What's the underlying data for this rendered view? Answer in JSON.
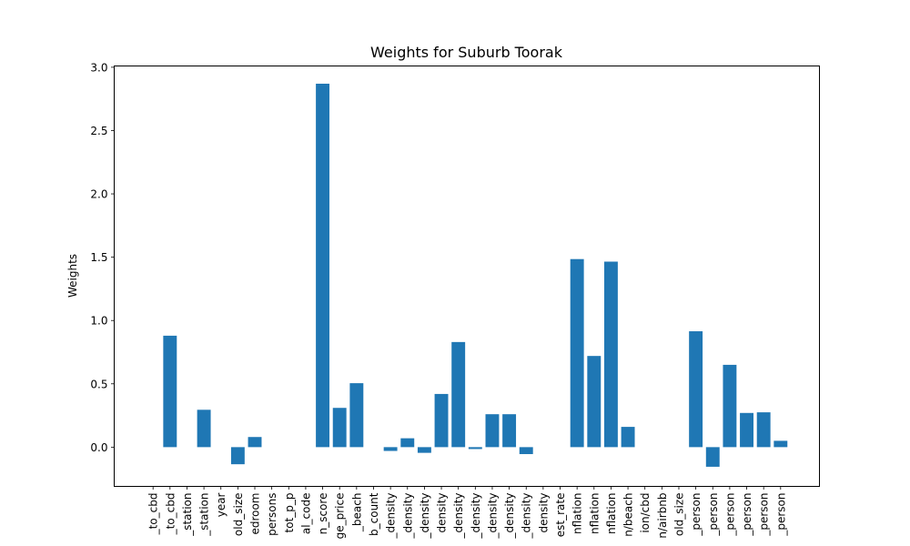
{
  "chart_data": {
    "type": "bar",
    "title": "Weights for Suburb Toorak",
    "xlabel": "",
    "ylabel": "Weights",
    "ylim": [
      -0.31,
      3.01
    ],
    "yticks": [
      0.0,
      0.5,
      1.0,
      1.5,
      2.0,
      2.5,
      3.0
    ],
    "ytick_labels": [
      "0.0",
      "0.5",
      "1.0",
      "1.5",
      "2.0",
      "2.5",
      "3.0"
    ],
    "grid": false,
    "bar_color": "#1f77b4",
    "categories": [
      "_to_cbd",
      "_to_cbd",
      "_station",
      "_station",
      "year",
      "old_size",
      "edroom",
      "persons",
      "tot_p_p",
      "al_code",
      "n_score",
      "ge_price",
      "_beach",
      "b_count",
      "_density",
      "_density",
      "_density",
      "density",
      "_density",
      "_density",
      "_density",
      "_density",
      "_density",
      "density",
      "est_rate",
      "nflation",
      "nflation",
      "nflation",
      "n/beach",
      "ion/cbd",
      "n/airbnb",
      "old_size",
      "_person",
      "_person",
      "_person",
      "_person",
      "_person",
      "_person"
    ],
    "values": [
      0.0,
      0.88,
      0.0,
      0.295,
      0.0,
      -0.135,
      0.08,
      0.0,
      0.0,
      0.0,
      2.87,
      0.31,
      0.505,
      0.0,
      -0.03,
      0.07,
      -0.045,
      0.42,
      0.83,
      -0.015,
      0.26,
      0.26,
      -0.055,
      0.0,
      0.0,
      1.485,
      0.72,
      1.465,
      0.16,
      0.0,
      0.0,
      0.0,
      0.915,
      -0.155,
      0.65,
      0.27,
      0.275,
      0.05
    ]
  }
}
